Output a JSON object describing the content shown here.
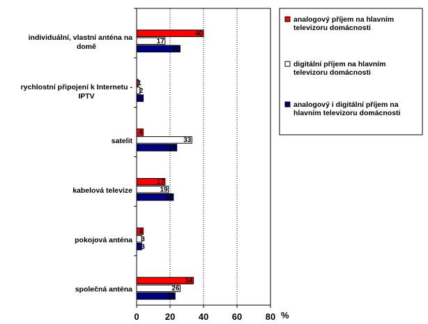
{
  "chart_data": {
    "type": "bar",
    "orientation": "horizontal",
    "categories": [
      [
        "individuální, vlastní anténa na",
        "domě"
      ],
      [
        "rychlostní připojení k Internetu -",
        "IPTV"
      ],
      [
        "satelit"
      ],
      [
        "kabelová televize"
      ],
      [
        "pokojová anténa"
      ],
      [
        "společná anténa"
      ]
    ],
    "series": [
      {
        "name": "analogový příjem na hlavním televizoru domácnosti",
        "legend_lines": [
          "analogový příjem na hlavním",
          "televizoru domácnosti"
        ],
        "color": "#ff0000",
        "values": [
          40,
          1,
          4,
          17,
          4,
          34
        ]
      },
      {
        "name": "digitální příjem na hlavním televizoru domácnosti",
        "legend_lines": [
          "digitální příjem na hlavním",
          "televizoru domácnosti"
        ],
        "color": "#ffffff",
        "values": [
          17,
          2,
          33,
          19,
          3,
          26
        ]
      },
      {
        "name": "analogový i digitální příjem na hlavním televizoru domácnosti",
        "legend_lines": [
          "analogový i digitální příjem na",
          "hlavním televizoru domácnosti"
        ],
        "color": "#000080",
        "values": [
          26,
          4,
          24,
          22,
          3,
          23
        ]
      }
    ],
    "xlim": [
      0,
      80
    ],
    "xticks": [
      "0",
      "20",
      "40",
      "60",
      "80"
    ],
    "xunit": "%",
    "grid": "vertical dotted",
    "legend_position": "top-right"
  }
}
